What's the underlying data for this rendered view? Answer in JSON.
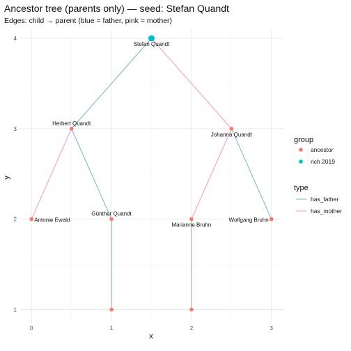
{
  "chart_data": {
    "type": "network",
    "title": "Ancestor tree (parents only) — seed: Stefan Quandt",
    "subtitle": "Edges: child → parent (blue = father, pink = mother)",
    "xlabel": "x",
    "ylabel": "y",
    "xlim": [
      -0.15,
      3.15
    ],
    "ylim": [
      0.85,
      4.1
    ],
    "x_ticks": [
      0,
      1,
      2,
      3
    ],
    "y_ticks": [
      1,
      2,
      3,
      4
    ],
    "nodes": [
      {
        "id": "stefan",
        "label": "Stefan Quandt",
        "x": 1.5,
        "y": 4,
        "group": "rich 2019",
        "label_pos": "below"
      },
      {
        "id": "herbert",
        "label": "Herbert Quandt",
        "x": 0.5,
        "y": 3,
        "group": "ancestor",
        "label_pos": "above"
      },
      {
        "id": "johanna",
        "label": "Johanna Quandt",
        "x": 2.5,
        "y": 3,
        "group": "ancestor",
        "label_pos": "below"
      },
      {
        "id": "antonie",
        "label": "Antonie Ewald",
        "x": 0,
        "y": 2,
        "group": "ancestor",
        "label_pos": "right"
      },
      {
        "id": "guenther",
        "label": "Günther Quandt",
        "x": 1,
        "y": 2,
        "group": "ancestor",
        "label_pos": "above"
      },
      {
        "id": "marianne",
        "label": "Marianne Bruhn",
        "x": 2,
        "y": 2,
        "group": "ancestor",
        "label_pos": "below"
      },
      {
        "id": "wolfgang",
        "label": "Wolfgang Bruhn",
        "x": 3,
        "y": 2,
        "group": "ancestor",
        "label_pos": "left"
      },
      {
        "id": "n1",
        "label": "",
        "x": 1,
        "y": 1,
        "group": "ancestor",
        "label_pos": "none"
      },
      {
        "id": "n2",
        "label": "",
        "x": 2,
        "y": 1,
        "group": "ancestor",
        "label_pos": "none"
      }
    ],
    "edges": [
      {
        "from": "stefan",
        "to": "herbert",
        "type": "has_father"
      },
      {
        "from": "stefan",
        "to": "johanna",
        "type": "has_mother"
      },
      {
        "from": "herbert",
        "to": "guenther",
        "type": "has_father"
      },
      {
        "from": "herbert",
        "to": "antonie",
        "type": "has_mother"
      },
      {
        "from": "johanna",
        "to": "wolfgang",
        "type": "has_father"
      },
      {
        "from": "johanna",
        "to": "marianne",
        "type": "has_mother"
      },
      {
        "from": "guenther",
        "to": "n1",
        "type": "has_father"
      },
      {
        "from": "marianne",
        "to": "n2",
        "type": "has_father"
      }
    ],
    "legend_group": {
      "title": "group",
      "items": [
        {
          "label": "ancestor",
          "color": "#F8766D"
        },
        {
          "label": "rich 2019",
          "color": "#00BFC4"
        }
      ]
    },
    "legend_type": {
      "title": "type",
      "items": [
        {
          "label": "has_father",
          "color": "#7BAFD4"
        },
        {
          "label": "has_mother",
          "color": "#F49AB6"
        }
      ]
    },
    "legend_position": "right"
  }
}
